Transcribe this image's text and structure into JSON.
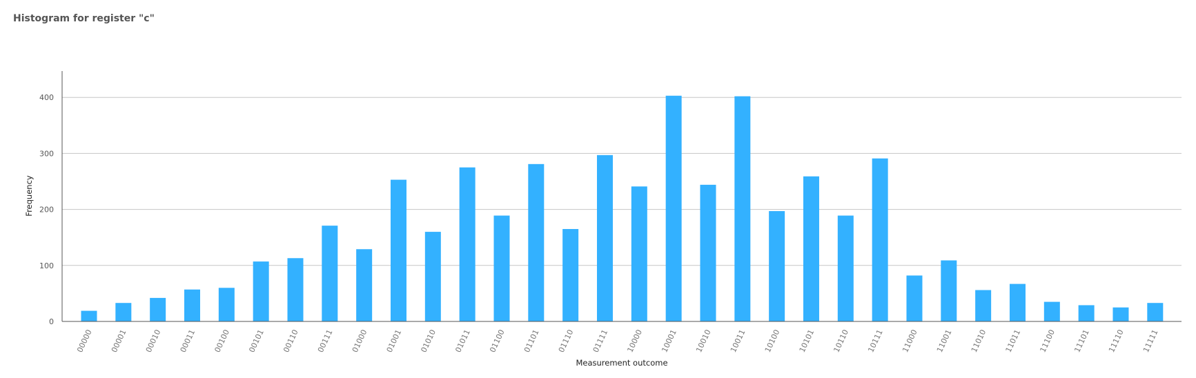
{
  "chart_data": {
    "type": "bar",
    "title": "Histogram for register \"c\"",
    "xlabel": "Measurement outcome",
    "ylabel": "Frequency",
    "ylim": [
      0,
      450
    ],
    "yticks": [
      0,
      100,
      200,
      300,
      400
    ],
    "grid": true,
    "bar_color": "#33b1ff",
    "categories": [
      "00000",
      "00001",
      "00010",
      "00011",
      "00100",
      "00101",
      "00110",
      "00111",
      "01000",
      "01001",
      "01010",
      "01011",
      "01100",
      "01101",
      "01110",
      "01111",
      "10000",
      "10001",
      "10010",
      "10011",
      "10100",
      "10101",
      "10110",
      "10111",
      "11000",
      "11001",
      "11010",
      "11011",
      "11100",
      "11101",
      "11110",
      "11111"
    ],
    "values": [
      19,
      33,
      42,
      57,
      60,
      107,
      113,
      171,
      129,
      253,
      160,
      275,
      189,
      281,
      165,
      297,
      241,
      403,
      244,
      402,
      197,
      259,
      189,
      291,
      82,
      109,
      56,
      67,
      35,
      29,
      25,
      33
    ]
  }
}
